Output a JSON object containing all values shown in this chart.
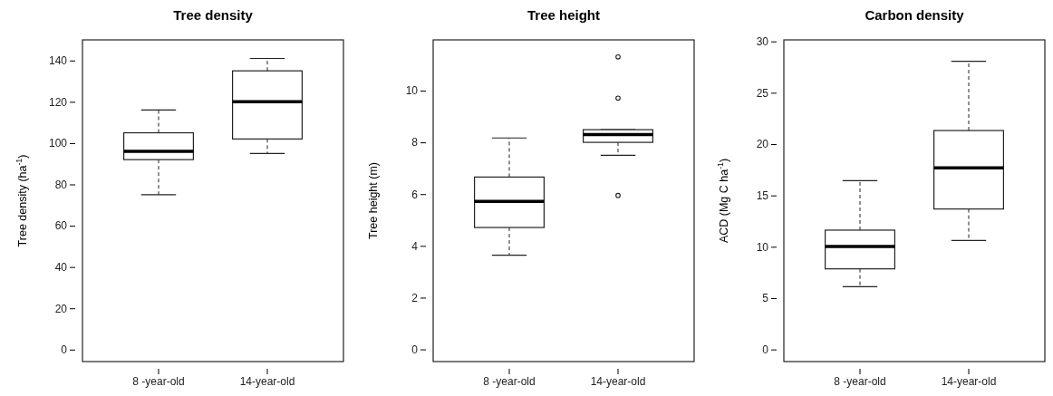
{
  "chart_data": [
    {
      "type": "box",
      "title": "Tree density",
      "ylabel": "Tree density (ha$^{-1}$)",
      "categories": [
        "8 -year-old",
        "14-year-old"
      ],
      "ylim": [
        -5.8,
        150
      ],
      "yticks": [
        0,
        20,
        40,
        60,
        80,
        100,
        120,
        140
      ],
      "boxes": [
        {
          "low": 75,
          "q1": 92,
          "median": 96,
          "q3": 105,
          "high": 116
        },
        {
          "low": 95,
          "q1": 102,
          "median": 120,
          "q3": 135,
          "high": 141
        }
      ]
    },
    {
      "type": "box",
      "title": "Tree height",
      "ylabel": "Tree height (m)",
      "categories": [
        "8 -year-old",
        "14-year-old"
      ],
      "ylim": [
        -0.47,
        11.96
      ],
      "yticks": [
        0,
        2,
        4,
        6,
        8,
        10
      ],
      "boxes": [
        {
          "low": 3.64,
          "q1": 4.71,
          "median": 5.72,
          "q3": 6.66,
          "high": 8.17
        },
        {
          "low": 7.5,
          "q1": 8.0,
          "median": 8.3,
          "q3": 8.49,
          "high": 8.49,
          "outliers": [
            11.3,
            9.71,
            5.95
          ]
        }
      ]
    },
    {
      "type": "box",
      "title": "Carbon density",
      "ylabel": "ACD (Mg C ha$^{-1}$)",
      "categories": [
        "8 -year-old",
        "14-year-old"
      ],
      "ylim": [
        -1.18,
        30.15
      ],
      "yticks": [
        0,
        5,
        10,
        15,
        20,
        25,
        30
      ],
      "boxes": [
        {
          "low": 6.12,
          "q1": 7.85,
          "median": 10.03,
          "q3": 11.62,
          "high": 16.44
        },
        {
          "low": 10.62,
          "q1": 13.68,
          "median": 17.68,
          "q3": 21.32,
          "high": 28.06
        }
      ]
    }
  ]
}
